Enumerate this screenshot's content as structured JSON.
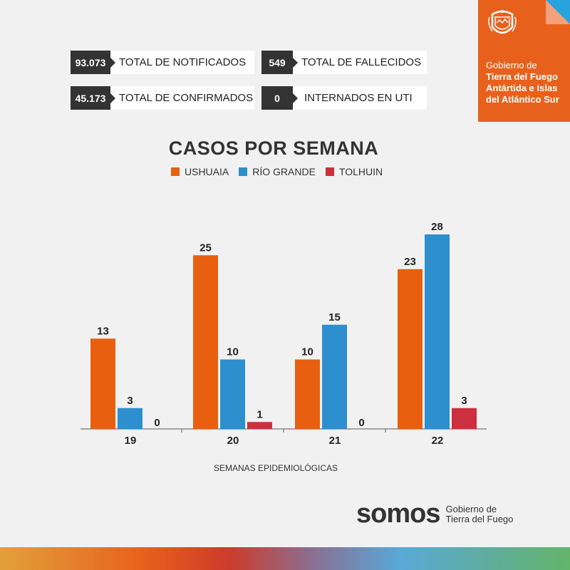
{
  "stats": [
    {
      "value": "93.073",
      "label": "TOTAL DE NOTIFICADOS"
    },
    {
      "value": "549",
      "label": "TOTAL DE FALLECIDOS"
    },
    {
      "value": "45.173",
      "label": "TOTAL DE CONFIRMADOS"
    },
    {
      "value": "0",
      "label": "INTERNADOS EN UTI"
    }
  ],
  "gov": {
    "line1": "Gobierno de",
    "line2": "Tierra del Fuego",
    "line3": "Antártida e Islas",
    "line4": "del Atlántico Sur"
  },
  "footer": {
    "brand": "somos",
    "line1": "Gobierno de",
    "line2": "Tierra del Fuego"
  },
  "colors": {
    "ushuaia": "#e8600f",
    "rio_grande": "#2e8fce",
    "tolhuin": "#cc2f3d"
  },
  "chart_data": {
    "type": "bar",
    "title": "CASOS POR SEMANA",
    "xlabel": "SEMANAS EPIDEMIOLÓGICAS",
    "ylabel": "",
    "categories": [
      "19",
      "20",
      "21",
      "22"
    ],
    "series": [
      {
        "name": "USHUAIA",
        "values": [
          13,
          25,
          10,
          23
        ]
      },
      {
        "name": "RÍO GRANDE",
        "values": [
          3,
          10,
          15,
          28
        ]
      },
      {
        "name": "TOLHUIN",
        "values": [
          0,
          1,
          0,
          3
        ]
      }
    ],
    "ylim": [
      0,
      30
    ],
    "legend": "top-center",
    "grid": false
  }
}
